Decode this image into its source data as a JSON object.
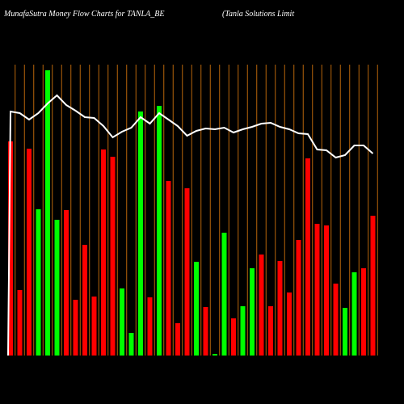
{
  "chart_data": {
    "type": "bar",
    "title": "MunafaSutra  Money Flow  Charts for TANLA_BE",
    "subtitle": "(Tanla  Solutions Limit",
    "categories": [
      null,
      null,
      null,
      null,
      null,
      null,
      null,
      null,
      null,
      null,
      null,
      null,
      null,
      null,
      null,
      null,
      null,
      null,
      null,
      null,
      null,
      null,
      null,
      null,
      null,
      null,
      null,
      null,
      null,
      null,
      null,
      null,
      null,
      null,
      null,
      null,
      null,
      null,
      null,
      null
    ],
    "values": [
      265,
      81,
      256,
      181,
      353,
      168,
      180,
      69,
      137,
      73,
      255,
      246,
      83,
      28,
      302,
      72,
      309,
      216,
      40,
      207,
      116,
      60,
      2,
      152,
      46,
      61,
      108,
      125,
      61,
      117,
      78,
      143,
      244,
      163,
      161,
      89,
      59,
      103,
      108,
      173
    ],
    "colors": [
      "#ff0000",
      "#ff0000",
      "#ff0000",
      "#00ff00",
      "#00ff00",
      "#00ff00",
      "#ff0000",
      "#ff0000",
      "#ff0000",
      "#ff0000",
      "#ff0000",
      "#ff0000",
      "#00ff00",
      "#00ff00",
      "#00ff00",
      "#ff0000",
      "#00ff00",
      "#ff0000",
      "#ff0000",
      "#ff0000",
      "#00ff00",
      "#ff0000",
      "#00ff00",
      "#00ff00",
      "#ff0000",
      "#00ff00",
      "#00ff00",
      "#ff0000",
      "#ff0000",
      "#ff0000",
      "#ff0000",
      "#ff0000",
      "#ff0000",
      "#ff0000",
      "#ff0000",
      "#ff0000",
      "#00ff00",
      "#00ff00",
      "#ff0000",
      "#ff0000"
    ],
    "line": {
      "color": "#ffffff",
      "values": [
        302,
        300,
        292,
        300,
        312,
        322,
        310,
        303,
        295,
        294,
        284,
        270,
        277,
        282,
        295,
        287,
        300,
        292,
        284,
        272,
        278,
        281,
        280,
        282,
        276,
        280,
        283,
        287,
        288,
        283,
        280,
        275,
        274,
        255,
        254,
        245,
        248,
        260,
        260,
        250
      ]
    },
    "grid_color": "#b8650a",
    "ylim": [
      0,
      360
    ]
  }
}
